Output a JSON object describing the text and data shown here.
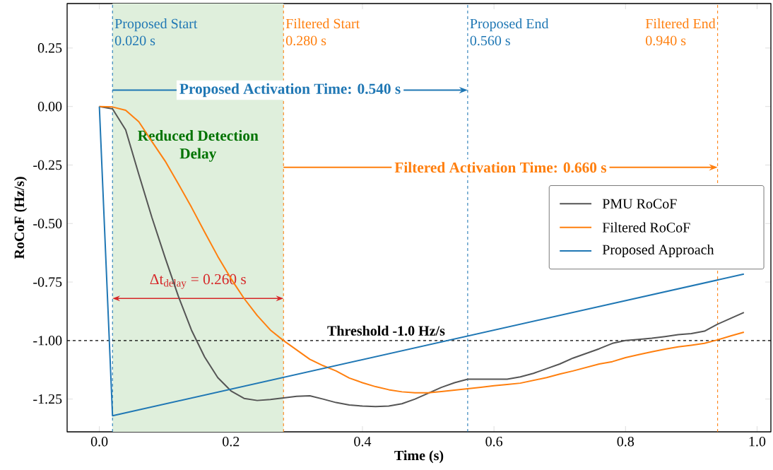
{
  "chart_data": {
    "type": "line",
    "xlabel": "Time (s)",
    "ylabel": "RoCoF (Hz/s)",
    "xlim": [
      -0.049,
      1.021
    ],
    "ylim": [
      -1.39,
      0.44
    ],
    "xticks": [
      {
        "value": 0,
        "label": "0.0"
      },
      {
        "value": 0.2,
        "label": "0.2"
      },
      {
        "value": 0.4,
        "label": "0.4"
      },
      {
        "value": 0.6,
        "label": "0.6"
      },
      {
        "value": 0.8,
        "label": "0.8"
      },
      {
        "value": 1.0,
        "label": "1.0"
      }
    ],
    "yticks": [
      {
        "value": 0.25,
        "label": "0.25"
      },
      {
        "value": 0,
        "label": "0.00"
      },
      {
        "value": -0.25,
        "label": "-0.25"
      },
      {
        "value": -0.5,
        "label": "-0.50"
      },
      {
        "value": -0.75,
        "label": "-0.75"
      },
      {
        "value": -1.0,
        "label": "-1.00"
      },
      {
        "value": -1.25,
        "label": "-1.25"
      }
    ],
    "grid": false,
    "legend": "right",
    "marker": "none",
    "line_style": "solid",
    "series": [
      {
        "name": "PMU RoCoF",
        "color": "#555555",
        "x": [
          0,
          0.02,
          0.04,
          0.06,
          0.08,
          0.1,
          0.12,
          0.14,
          0.16,
          0.18,
          0.2,
          0.22,
          0.24,
          0.26,
          0.28,
          0.3,
          0.32,
          0.34,
          0.36,
          0.38,
          0.4,
          0.42,
          0.44,
          0.46,
          0.48,
          0.5,
          0.52,
          0.54,
          0.56,
          0.58,
          0.6,
          0.62,
          0.64,
          0.66,
          0.68,
          0.7,
          0.72,
          0.74,
          0.76,
          0.78,
          0.8,
          0.82,
          0.84,
          0.86,
          0.88,
          0.9,
          0.92,
          0.94,
          0.96,
          0.98
        ],
        "values": [
          0,
          -0.01,
          -0.1,
          -0.29,
          -0.475,
          -0.646,
          -0.81,
          -0.955,
          -1.07,
          -1.158,
          -1.215,
          -1.247,
          -1.256,
          -1.252,
          -1.245,
          -1.238,
          -1.236,
          -1.25,
          -1.265,
          -1.275,
          -1.28,
          -1.282,
          -1.28,
          -1.27,
          -1.25,
          -1.225,
          -1.2,
          -1.18,
          -1.165,
          -1.165,
          -1.165,
          -1.165,
          -1.155,
          -1.14,
          -1.12,
          -1.1,
          -1.075,
          -1.055,
          -1.035,
          -1.012,
          -1.0,
          -0.995,
          -0.99,
          -0.983,
          -0.975,
          -0.97,
          -0.96,
          -0.93,
          -0.905,
          -0.88
        ]
      },
      {
        "name": "Filtered RoCoF",
        "color": "#ff7f0e",
        "x": [
          0,
          0.02,
          0.04,
          0.06,
          0.08,
          0.1,
          0.12,
          0.14,
          0.16,
          0.18,
          0.2,
          0.22,
          0.24,
          0.26,
          0.28,
          0.3,
          0.32,
          0.34,
          0.36,
          0.38,
          0.4,
          0.42,
          0.44,
          0.46,
          0.48,
          0.5,
          0.52,
          0.54,
          0.56,
          0.58,
          0.6,
          0.62,
          0.64,
          0.66,
          0.68,
          0.7,
          0.72,
          0.74,
          0.76,
          0.78,
          0.8,
          0.82,
          0.84,
          0.86,
          0.88,
          0.9,
          0.92,
          0.94,
          0.96,
          0.98
        ],
        "values": [
          0,
          -0.002,
          -0.016,
          -0.065,
          -0.15,
          -0.233,
          -0.33,
          -0.43,
          -0.536,
          -0.64,
          -0.735,
          -0.82,
          -0.893,
          -0.955,
          -1.0,
          -1.04,
          -1.08,
          -1.107,
          -1.13,
          -1.16,
          -1.18,
          -1.197,
          -1.21,
          -1.219,
          -1.223,
          -1.223,
          -1.218,
          -1.212,
          -1.206,
          -1.2,
          -1.193,
          -1.188,
          -1.182,
          -1.17,
          -1.158,
          -1.143,
          -1.13,
          -1.115,
          -1.1,
          -1.09,
          -1.073,
          -1.06,
          -1.048,
          -1.037,
          -1.027,
          -1.02,
          -1.012,
          -0.997,
          -0.98,
          -0.964
        ]
      },
      {
        "name": "Proposed Approach",
        "color": "#1f77b4",
        "x": [
          0,
          0.02,
          0.98
        ],
        "values": [
          0,
          -1.321,
          -0.716
        ]
      }
    ],
    "ref_lines": [
      {
        "axis": "x",
        "value": 0.02,
        "label": "Proposed Start 0.020 s",
        "color": "#1f77b4",
        "line_style": "dashed"
      },
      {
        "axis": "x",
        "value": 0.28,
        "label": "Filtered Start 0.280 s",
        "color": "#ff7f0e",
        "line_style": "dashed"
      },
      {
        "axis": "x",
        "value": 0.56,
        "label": "Proposed End 0.560 s",
        "color": "#1f77b4",
        "line_style": "dashed"
      },
      {
        "axis": "x",
        "value": 0.94,
        "label": "Filtered End 0.940 s",
        "color": "#ff7f0e",
        "line_style": "dashed"
      },
      {
        "axis": "y",
        "value": -1.0,
        "label": "Threshold -1.0 Hz/s",
        "color": "#000000",
        "line_style": "dashed"
      }
    ],
    "bands": [
      {
        "axis": "x",
        "from": 0.02,
        "to": 0.28,
        "label": "Reduced Detection Delay",
        "color": "#dfefdc"
      }
    ],
    "annotations": [
      "Proposed Activation Time: 0.540 s",
      "Filtered Activation Time: 0.660 s",
      "Δt$_{delay}$ = 0.260 s"
    ]
  }
}
